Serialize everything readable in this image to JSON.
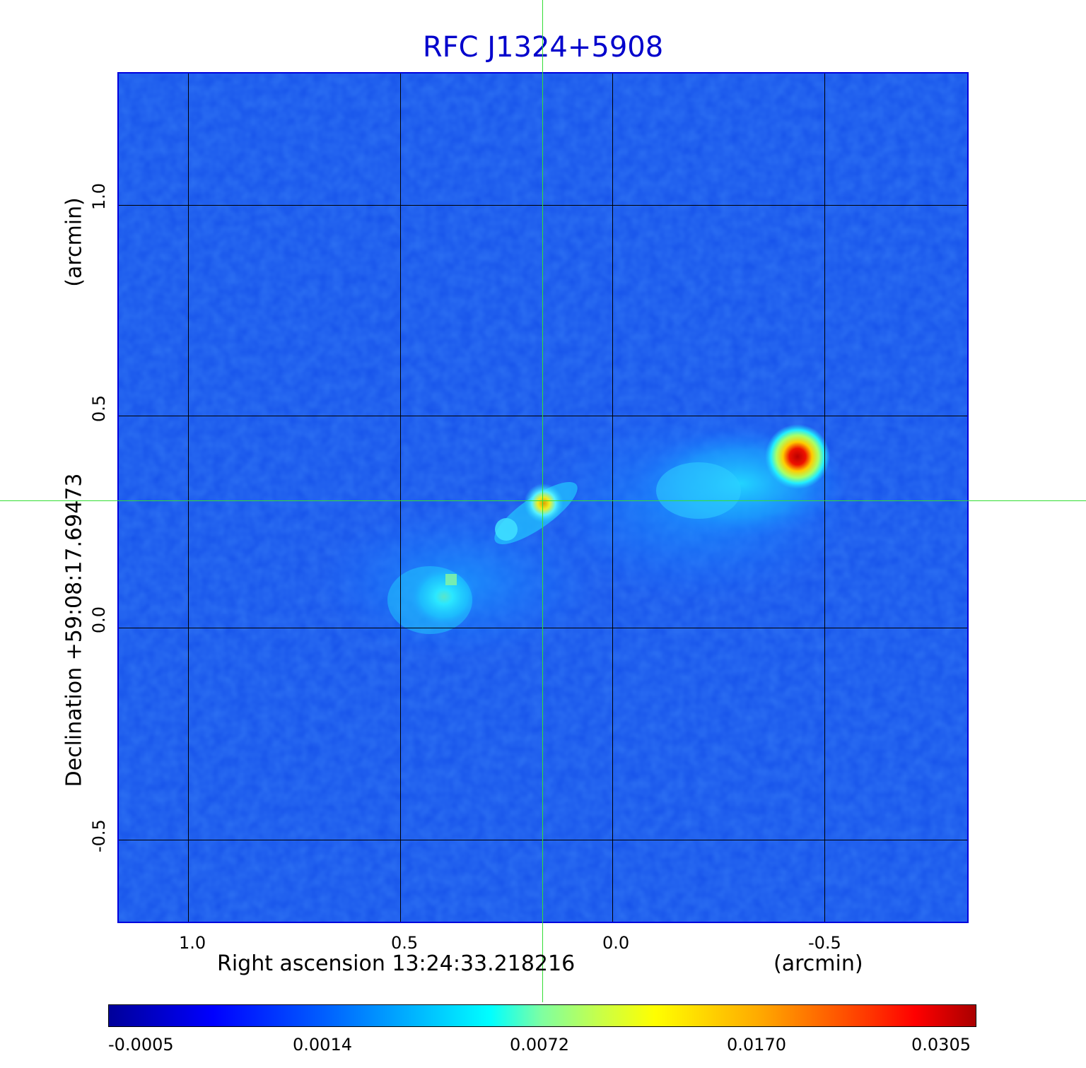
{
  "title": "RFC J1324+5908",
  "x_axis": {
    "label": "Right ascension  13:24:33.218216",
    "unit": "(arcmin)",
    "ticks": [
      "1.0",
      "0.5",
      "0.0",
      "-0.5"
    ]
  },
  "y_axis": {
    "label": "Declination  +59:08:17.69473",
    "unit": "(arcmin)",
    "ticks": [
      "1.0",
      "0.5",
      "0.0",
      "-0.5"
    ]
  },
  "colorbar": {
    "ticks": [
      "-0.0005",
      "0.0014",
      "0.0072",
      "0.0170",
      "0.0305"
    ],
    "colormap": "jet"
  },
  "colors": {
    "title": "#0000cc",
    "frame": "#0000dd",
    "crosshair": "#33dd33",
    "background_map": "#1450e6"
  }
}
